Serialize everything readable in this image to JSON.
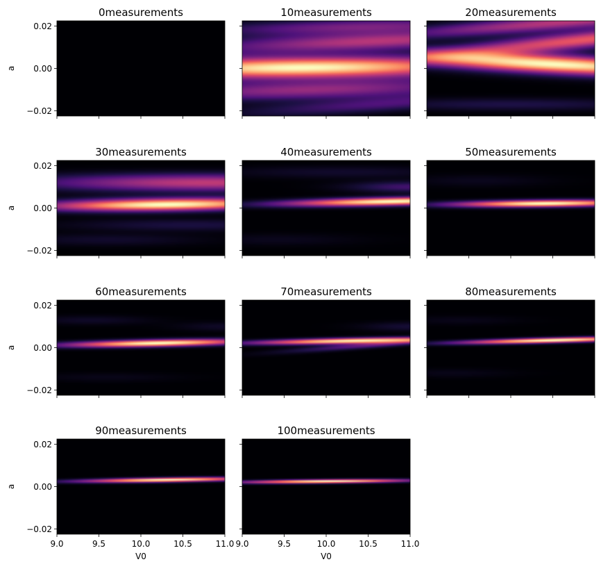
{
  "figure": {
    "colormap": "magma",
    "background": "#ffffff"
  },
  "chart_data": {
    "type": "heatmap",
    "xlabel": "V0",
    "ylabel": "a",
    "xlim": [
      9.0,
      11.0
    ],
    "ylim": [
      -0.0225,
      0.0225
    ],
    "x_ticks": [
      9.0,
      9.5,
      10.0,
      10.5,
      11.0
    ],
    "x_tick_labels": [
      "9.0",
      "9.5",
      "10.0",
      "10.5",
      "11.0"
    ],
    "y_ticks": [
      0.02,
      0.0,
      -0.02
    ],
    "y_tick_labels": [
      "0.02",
      "0.00",
      "−0.02"
    ],
    "grid": false,
    "panels": [
      {
        "title": "0measurements",
        "measurements": 0,
        "bands": []
      },
      {
        "title": "10measurements",
        "measurements": 10,
        "bands": [
          {
            "a": 0.0005,
            "slope": 0.0004,
            "amp": 1.0,
            "width": 0.0035,
            "v_peak": 9.7,
            "v_spread": 1.6
          },
          {
            "a": 0.012,
            "slope": 0.0015,
            "amp": 0.5,
            "width": 0.003,
            "v_peak": 10.6,
            "v_spread": 1.4
          },
          {
            "a": -0.01,
            "slope": 0.001,
            "amp": 0.42,
            "width": 0.003,
            "v_peak": 9.8,
            "v_spread": 1.4
          },
          {
            "a": 0.0195,
            "slope": 0.001,
            "amp": 0.34,
            "width": 0.0025,
            "v_peak": 10.4,
            "v_spread": 1.2
          },
          {
            "a": -0.0185,
            "slope": 0.0025,
            "amp": 0.24,
            "width": 0.0025,
            "v_peak": 10.7,
            "v_spread": 1.2
          }
        ]
      },
      {
        "title": "20measurements",
        "measurements": 20,
        "bands": [
          {
            "a": 0.003,
            "slope": -0.002,
            "amp": 0.9,
            "width": 0.003,
            "v_peak": 10.5,
            "v_spread": 1.3
          },
          {
            "a": 0.01,
            "slope": 0.004,
            "amp": 0.58,
            "width": 0.0028,
            "v_peak": 10.9,
            "v_spread": 1.3
          },
          {
            "a": 0.02,
            "slope": 0.003,
            "amp": 0.45,
            "width": 0.0025,
            "v_peak": 10.6,
            "v_spread": 1.4
          },
          {
            "a": -0.017,
            "slope": 0.0,
            "amp": 0.12,
            "width": 0.002,
            "v_peak": 10.0,
            "v_spread": 1.2
          }
        ]
      },
      {
        "title": "30measurements",
        "measurements": 30,
        "bands": [
          {
            "a": 0.0015,
            "slope": 0.0005,
            "amp": 1.0,
            "width": 0.002,
            "v_peak": 10.3,
            "v_spread": 1.0
          },
          {
            "a": 0.012,
            "slope": 0.0,
            "amp": 0.52,
            "width": 0.0028,
            "v_peak": 10.8,
            "v_spread": 1.4
          },
          {
            "a": -0.008,
            "slope": 0.0,
            "amp": 0.12,
            "width": 0.002,
            "v_peak": 10.6,
            "v_spread": 1.0
          },
          {
            "a": -0.015,
            "slope": 0.0,
            "amp": 0.08,
            "width": 0.002,
            "v_peak": 9.6,
            "v_spread": 0.8
          }
        ]
      },
      {
        "title": "40measurements",
        "measurements": 40,
        "bands": [
          {
            "a": 0.0025,
            "slope": 0.0008,
            "amp": 1.0,
            "width": 0.0013,
            "v_peak": 10.8,
            "v_spread": 0.9
          },
          {
            "a": 0.01,
            "slope": 0.0,
            "amp": 0.22,
            "width": 0.0018,
            "v_peak": 11.0,
            "v_spread": 0.5
          },
          {
            "a": 0.017,
            "slope": 0.0,
            "amp": 0.08,
            "width": 0.002,
            "v_peak": 10.2,
            "v_spread": 1.0
          },
          {
            "a": -0.015,
            "slope": 0.0,
            "amp": 0.05,
            "width": 0.002,
            "v_peak": 9.4,
            "v_spread": 0.7
          }
        ]
      },
      {
        "title": "50measurements",
        "measurements": 50,
        "bands": [
          {
            "a": 0.002,
            "slope": 0.0004,
            "amp": 1.0,
            "width": 0.0011,
            "v_peak": 10.4,
            "v_spread": 0.75
          },
          {
            "a": 0.013,
            "slope": 0.0,
            "amp": 0.05,
            "width": 0.002,
            "v_peak": 9.6,
            "v_spread": 0.6
          }
        ]
      },
      {
        "title": "60measurements",
        "measurements": 60,
        "bands": [
          {
            "a": 0.002,
            "slope": 0.0008,
            "amp": 1.0,
            "width": 0.0011,
            "v_peak": 10.2,
            "v_spread": 0.75
          },
          {
            "a": 0.013,
            "slope": 0.0,
            "amp": 0.07,
            "width": 0.0015,
            "v_peak": 9.4,
            "v_spread": 0.5
          },
          {
            "a": 0.01,
            "slope": 0.0,
            "amp": 0.07,
            "width": 0.0015,
            "v_peak": 11.0,
            "v_spread": 0.4
          },
          {
            "a": -0.014,
            "slope": 0.0,
            "amp": 0.04,
            "width": 0.0015,
            "v_peak": 9.6,
            "v_spread": 0.6
          }
        ]
      },
      {
        "title": "70measurements",
        "measurements": 70,
        "bands": [
          {
            "a": 0.003,
            "slope": 0.0008,
            "amp": 1.0,
            "width": 0.0009,
            "v_peak": 10.3,
            "v_spread": 0.8
          },
          {
            "a": -0.0003,
            "slope": 0.003,
            "amp": 0.3,
            "width": 0.001,
            "v_peak": 10.6,
            "v_spread": 0.7
          },
          {
            "a": 0.01,
            "slope": 0.0,
            "amp": 0.1,
            "width": 0.0015,
            "v_peak": 11.0,
            "v_spread": 0.4
          }
        ]
      },
      {
        "title": "80measurements",
        "measurements": 80,
        "bands": [
          {
            "a": 0.003,
            "slope": 0.001,
            "amp": 1.0,
            "width": 0.0008,
            "v_peak": 10.5,
            "v_spread": 0.75
          },
          {
            "a": -0.012,
            "slope": 0.0,
            "amp": 0.04,
            "width": 0.0015,
            "v_peak": 9.3,
            "v_spread": 0.5
          },
          {
            "a": 0.013,
            "slope": 0.0,
            "amp": 0.04,
            "width": 0.0015,
            "v_peak": 9.4,
            "v_spread": 0.5
          }
        ]
      },
      {
        "title": "90measurements",
        "measurements": 90,
        "bands": [
          {
            "a": 0.003,
            "slope": 0.0006,
            "amp": 1.0,
            "width": 0.0007,
            "v_peak": 10.3,
            "v_spread": 0.7
          }
        ]
      },
      {
        "title": "100measurements",
        "measurements": 100,
        "bands": [
          {
            "a": 0.0025,
            "slope": 0.0004,
            "amp": 1.0,
            "width": 0.0006,
            "v_peak": 10.0,
            "v_spread": 0.7
          }
        ]
      }
    ]
  }
}
